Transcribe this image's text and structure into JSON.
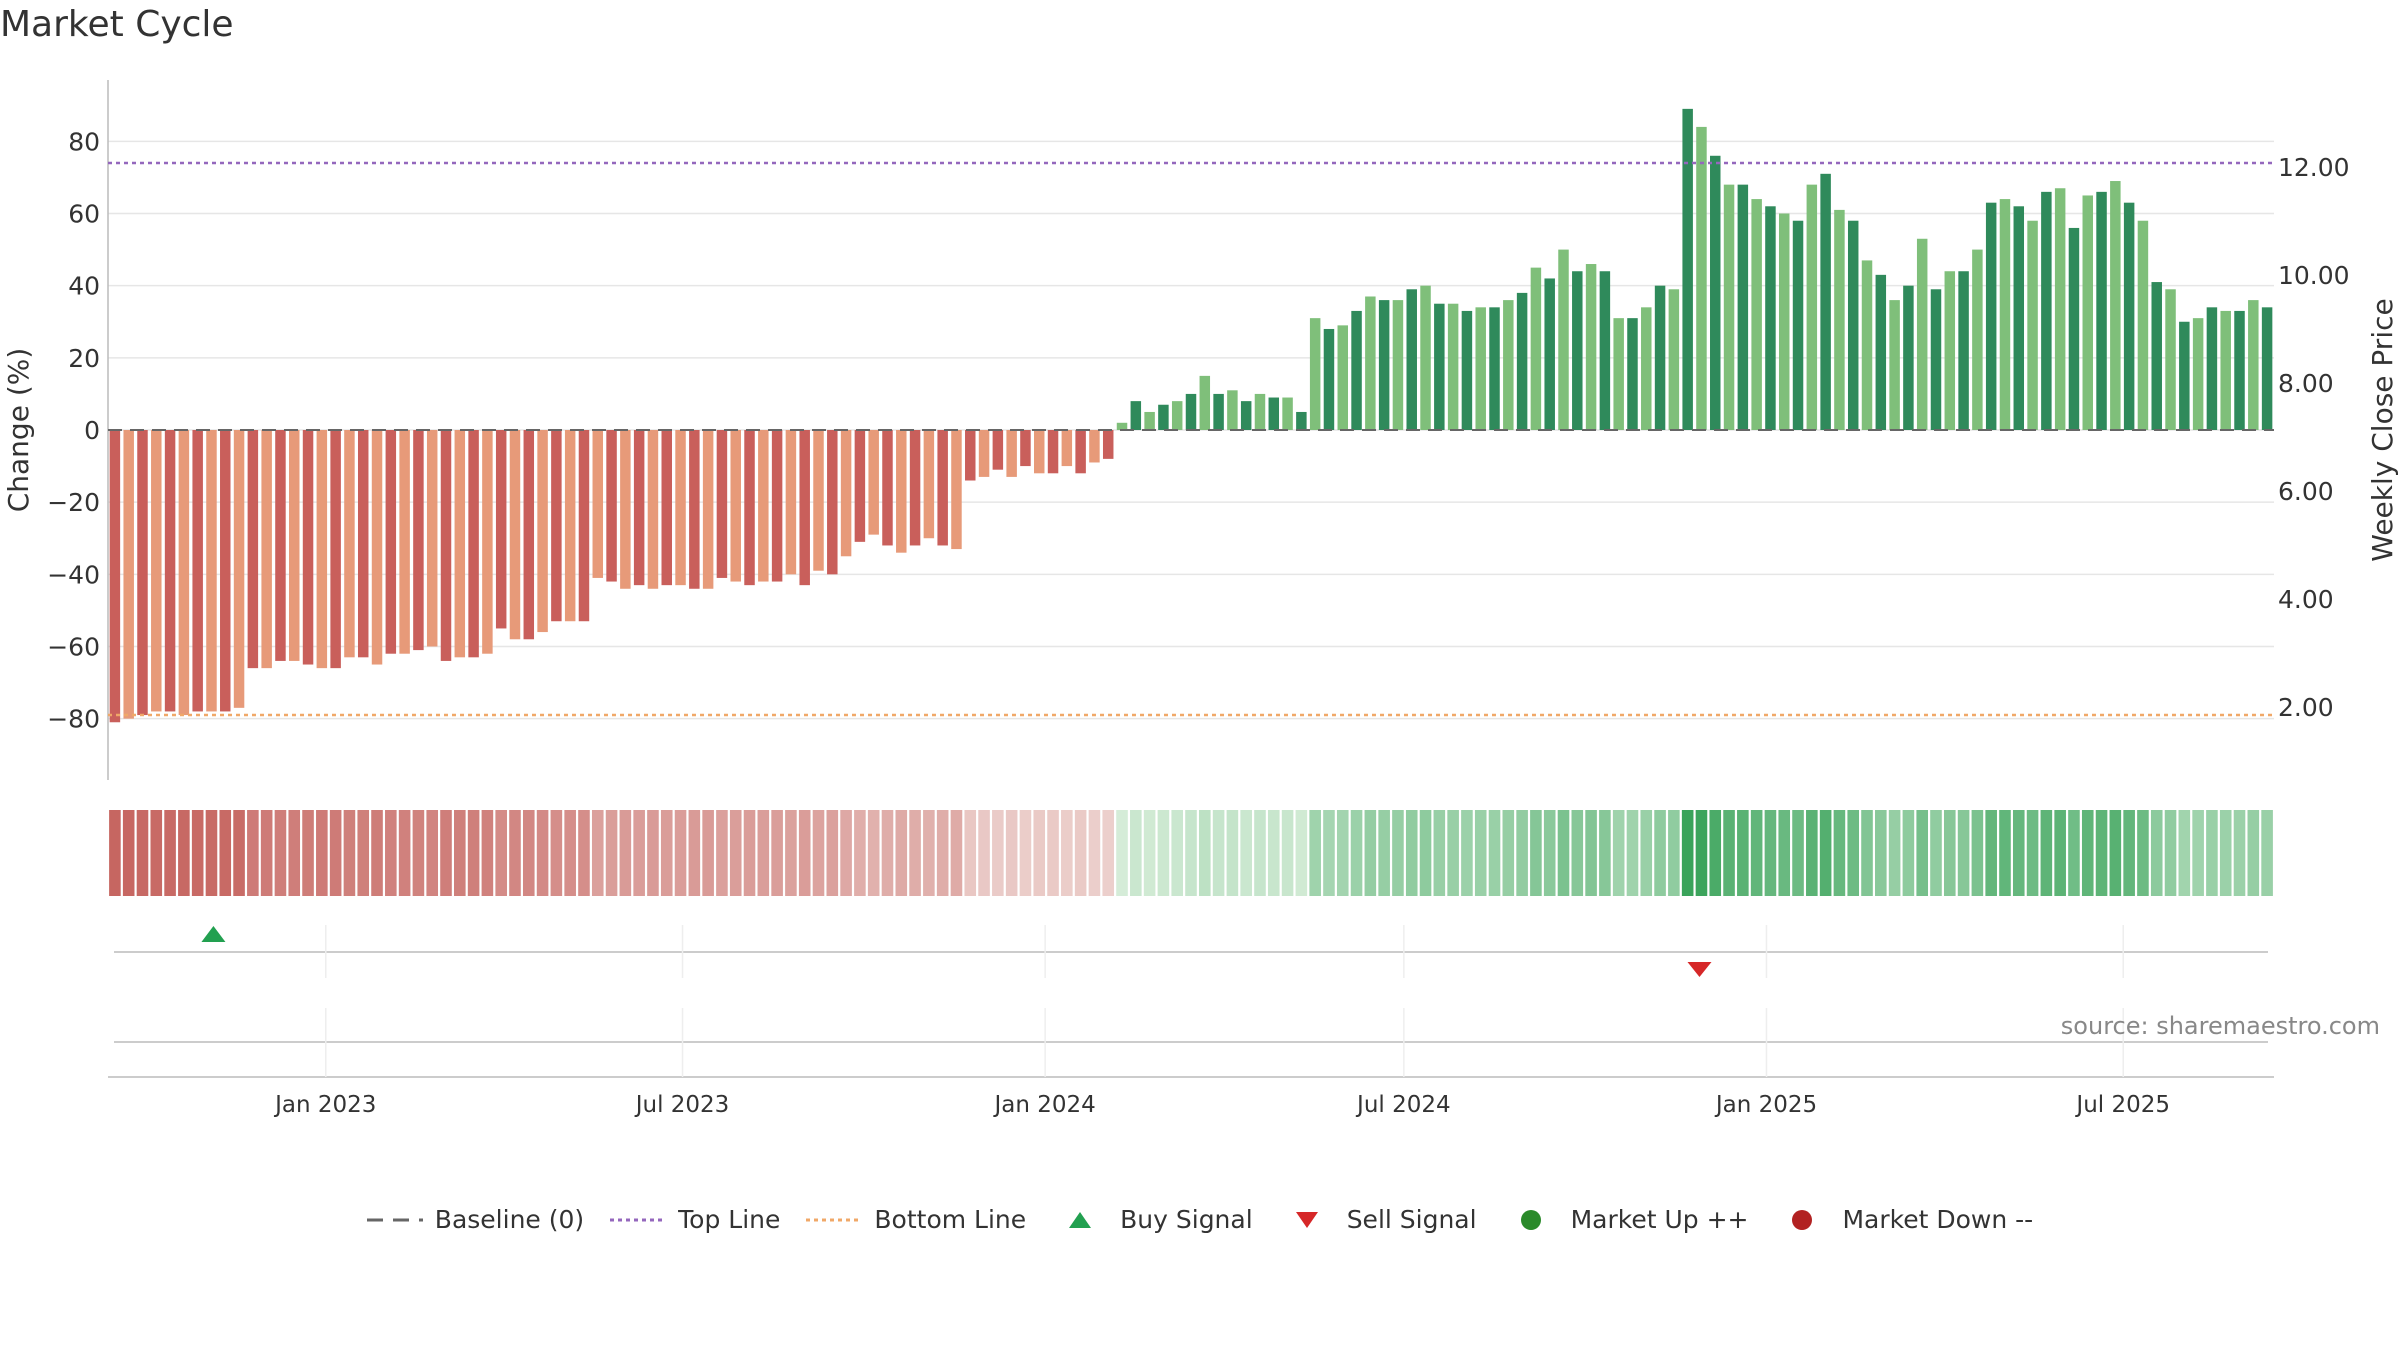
{
  "title": "Market Cycle",
  "source": "source: sharemaestro.com",
  "colors": {
    "bear_dark": "#c95f5b",
    "bear_light": "#e79a79",
    "bull_dark": "#2f8a5b",
    "bull_light": "#7fbf7a",
    "top_line": "#9467bd",
    "bottom_line": "#f0a868",
    "baseline": "#666666",
    "buy": "#22a050",
    "sell": "#d62728",
    "market_up": "#2a8a2a",
    "market_down": "#b22222"
  },
  "legend": [
    {
      "label": "Baseline (0)",
      "icon": "dash-line"
    },
    {
      "label": "Top Line",
      "icon": "dotted-purple-line"
    },
    {
      "label": "Bottom Line",
      "icon": "dotted-orange-line"
    },
    {
      "label": "Buy Signal",
      "icon": "triangle-up"
    },
    {
      "label": "Sell Signal",
      "icon": "triangle-down"
    },
    {
      "label": "Market Up ++",
      "icon": "circle-green"
    },
    {
      "label": "Market Down --",
      "icon": "circle-red"
    }
  ],
  "chart_data": {
    "type": "bar",
    "title": "Market Cycle",
    "ylabel": "Change (%)",
    "y2label": "Weekly Close Price",
    "ylim": [
      -97,
      97
    ],
    "yticks": [
      -80,
      -60,
      -40,
      -20,
      0,
      20,
      40,
      60,
      80
    ],
    "y2ticks": [
      "2.00",
      "4.00",
      "6.00",
      "8.00",
      "10.00",
      "12.00"
    ],
    "x_start": "2022-09-16",
    "x_step_days": 7,
    "xticks": [
      {
        "label": "Jan 2023",
        "date": "2023-01-01"
      },
      {
        "label": "Jul 2023",
        "date": "2023-07-01"
      },
      {
        "label": "Jan 2024",
        "date": "2024-01-01"
      },
      {
        "label": "Jul 2024",
        "date": "2024-07-01"
      },
      {
        "label": "Jan 2025",
        "date": "2025-01-01"
      },
      {
        "label": "Jul 2025",
        "date": "2025-07-01"
      }
    ],
    "top_line": 74,
    "bottom_line": -79,
    "baseline": 0,
    "series": [
      {
        "values": [
          -81,
          -80,
          -79,
          -78,
          -78,
          -79,
          -78,
          -78,
          -78,
          -77,
          -66,
          -66,
          -64,
          -64,
          -65,
          -66,
          -66,
          -63,
          -63,
          -65,
          -62,
          -62,
          -61,
          -60,
          -64,
          -63,
          -63,
          -62,
          -55,
          -58,
          -58,
          -56,
          -53,
          -53,
          -53,
          -41,
          -42,
          -44,
          -43,
          -44,
          -43,
          -43,
          -44,
          -44,
          -41,
          -42,
          -43,
          -42,
          -42,
          -40,
          -43,
          -39,
          -40,
          -35,
          -31,
          -29,
          -32,
          -34,
          -32,
          -30,
          -32,
          -33,
          -14,
          -13,
          -11,
          -13,
          -10,
          -12,
          -12,
          -10,
          -12,
          -9,
          -8,
          2,
          8,
          5,
          7,
          8,
          10,
          15,
          10,
          11,
          8,
          10,
          9,
          9,
          5,
          31,
          28,
          29,
          33,
          37,
          36,
          36,
          39,
          40,
          35,
          35,
          33,
          34,
          34,
          36,
          38,
          45,
          42,
          50,
          44,
          46,
          44,
          31,
          31,
          34,
          40,
          39,
          89,
          84,
          76,
          68,
          68,
          64,
          62,
          60,
          58,
          68,
          71,
          61,
          58,
          47,
          43,
          36,
          40,
          53,
          39,
          44,
          44,
          50,
          63,
          64,
          62,
          58,
          66,
          67,
          56,
          65,
          66,
          69,
          63,
          58,
          41,
          39,
          30,
          31,
          34,
          33,
          33,
          36,
          34
        ]
      }
    ],
    "signals": [
      {
        "type": "buy",
        "date": "2022-11-05"
      },
      {
        "type": "sell",
        "date": "2024-11-28"
      }
    ]
  }
}
